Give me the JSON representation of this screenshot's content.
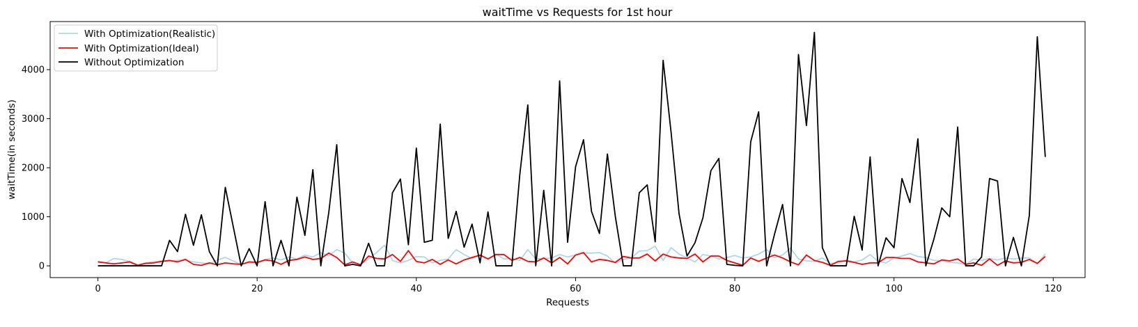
{
  "chart_data": {
    "type": "line",
    "title": "waitTime vs Requests for 1st hour",
    "xlabel": "Requests",
    "ylabel": "waitTime(in seconds)",
    "xlim": [
      -6,
      124
    ],
    "ylim": [
      -240,
      4980
    ],
    "xticks": [
      0,
      20,
      40,
      60,
      80,
      100,
      120
    ],
    "yticks": [
      0,
      1000,
      2000,
      3000,
      4000
    ],
    "grid": false,
    "legend": "top-left",
    "x": [
      0,
      1,
      2,
      3,
      4,
      5,
      6,
      7,
      8,
      9,
      10,
      11,
      12,
      13,
      14,
      15,
      16,
      17,
      18,
      19,
      20,
      21,
      22,
      23,
      24,
      25,
      26,
      27,
      28,
      29,
      30,
      31,
      32,
      33,
      34,
      35,
      36,
      37,
      38,
      39,
      40,
      41,
      42,
      43,
      44,
      45,
      46,
      47,
      48,
      49,
      50,
      51,
      52,
      53,
      54,
      55,
      56,
      57,
      58,
      59,
      60,
      61,
      62,
      63,
      64,
      65,
      66,
      67,
      68,
      69,
      70,
      71,
      72,
      73,
      74,
      75,
      76,
      77,
      78,
      79,
      80,
      81,
      82,
      83,
      84,
      85,
      86,
      87,
      88,
      89,
      90,
      91,
      92,
      93,
      94,
      95,
      96,
      97,
      98,
      99,
      100,
      101,
      102,
      103,
      104,
      105,
      106,
      107,
      108,
      109,
      110,
      111,
      112,
      113,
      114,
      115,
      116,
      117,
      118,
      119
    ],
    "series": [
      {
        "name": "With Optimization(Realistic)",
        "color": "#add8e6",
        "values": [
          90,
          60,
          150,
          130,
          90,
          20,
          60,
          80,
          100,
          90,
          110,
          120,
          80,
          60,
          40,
          120,
          170,
          100,
          30,
          60,
          40,
          130,
          160,
          120,
          180,
          140,
          220,
          180,
          270,
          200,
          330,
          260,
          60,
          30,
          140,
          270,
          420,
          110,
          60,
          110,
          190,
          180,
          60,
          110,
          140,
          330,
          230,
          150,
          210,
          140,
          240,
          140,
          150,
          110,
          330,
          140,
          150,
          160,
          230,
          180,
          220,
          260,
          260,
          270,
          200,
          50,
          130,
          160,
          300,
          310,
          400,
          110,
          370,
          240,
          160,
          80,
          230,
          200,
          140,
          170,
          210,
          160,
          180,
          240,
          330,
          170,
          220,
          360,
          140,
          100,
          90,
          160,
          50,
          60,
          120,
          80,
          120,
          230,
          90,
          60,
          160,
          200,
          250,
          190,
          170,
          110,
          100,
          70,
          60,
          20,
          140,
          110,
          150,
          120,
          160,
          140,
          160,
          160,
          40,
          240
        ]
      },
      {
        "name": "With Optimization(Ideal)",
        "color": "#ff0000",
        "values": [
          80,
          60,
          40,
          60,
          80,
          10,
          50,
          60,
          90,
          110,
          80,
          130,
          30,
          10,
          60,
          20,
          60,
          40,
          30,
          80,
          70,
          120,
          100,
          30,
          110,
          130,
          180,
          130,
          150,
          260,
          170,
          20,
          80,
          20,
          200,
          150,
          140,
          230,
          90,
          310,
          90,
          60,
          130,
          30,
          120,
          40,
          120,
          170,
          220,
          140,
          230,
          230,
          110,
          170,
          90,
          80,
          160,
          60,
          170,
          40,
          220,
          270,
          80,
          130,
          110,
          70,
          190,
          160,
          160,
          240,
          100,
          240,
          180,
          160,
          150,
          240,
          80,
          200,
          200,
          110,
          60,
          10,
          160,
          90,
          160,
          220,
          160,
          80,
          20,
          220,
          110,
          70,
          10,
          90,
          100,
          70,
          30,
          60,
          60,
          170,
          170,
          150,
          150,
          80,
          60,
          40,
          120,
          100,
          140,
          30,
          60,
          10,
          140,
          10,
          100,
          60,
          70,
          130,
          50,
          190
        ]
      },
      {
        "name": "Without Optimization",
        "color": "#000000",
        "values": [
          0,
          0,
          0,
          0,
          0,
          0,
          0,
          0,
          0,
          520,
          290,
          1050,
          420,
          1040,
          290,
          0,
          1600,
          800,
          0,
          350,
          0,
          1310,
          0,
          520,
          0,
          1400,
          620,
          1960,
          0,
          1090,
          2470,
          0,
          30,
          0,
          460,
          0,
          0,
          1490,
          1770,
          430,
          2400,
          480,
          520,
          2890,
          560,
          1110,
          380,
          850,
          60,
          1100,
          0,
          0,
          0,
          1870,
          3280,
          0,
          1540,
          0,
          3770,
          480,
          2020,
          2570,
          1110,
          660,
          2280,
          1000,
          0,
          0,
          1490,
          1650,
          490,
          4190,
          2720,
          1060,
          200,
          470,
          980,
          1940,
          2190,
          30,
          10,
          0,
          2530,
          3140,
          0,
          650,
          1250,
          0,
          4310,
          2860,
          4760,
          370,
          0,
          0,
          0,
          1010,
          320,
          2220,
          0,
          570,
          370,
          1780,
          1290,
          2590,
          0,
          540,
          1180,
          1000,
          2830,
          0,
          0,
          180,
          1780,
          1730,
          0,
          580,
          0,
          1030,
          4670,
          2220
        ]
      }
    ]
  }
}
